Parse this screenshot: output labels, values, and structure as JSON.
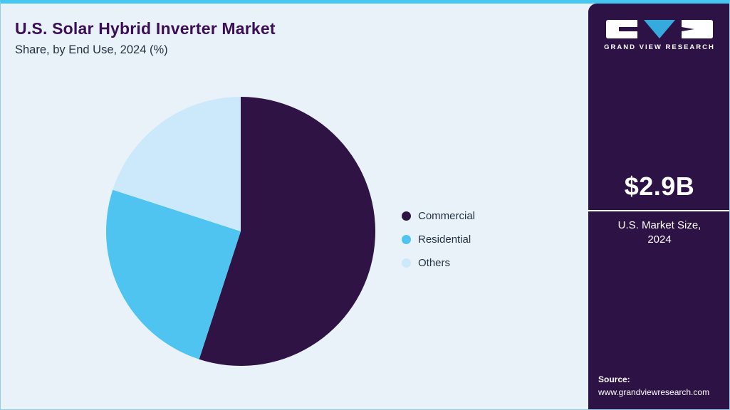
{
  "header": {
    "title": "U.S. Solar Hybrid Inverter Market",
    "subtitle": "Share, by End Use, 2024 (%)"
  },
  "sidebar": {
    "brand": "GRAND VIEW RESEARCH",
    "market_size": "$2.9B",
    "market_size_label": "U.S. Market Size, 2024",
    "source_label": "Source:",
    "source_url": "www.grandviewresearch.com",
    "background_color": "#2d1245",
    "logo_accent_color": "#35aadd"
  },
  "theme": {
    "accent_cyan": "#45c7f1",
    "main_background": "#e9f2f9",
    "title_color": "#3b0f56"
  },
  "chart_data": {
    "type": "pie",
    "title": "U.S. Solar Hybrid Inverter Market Share, by End Use, 2024 (%)",
    "categories": [
      "Commercial",
      "Residential",
      "Others"
    ],
    "values": [
      55,
      25,
      20
    ],
    "colors": [
      "#2e1344",
      "#4fc4f0",
      "#cbe9fb"
    ],
    "start_angle_deg": 0,
    "direction": "clockwise",
    "legend_position": "right",
    "data_labels_shown": false
  }
}
